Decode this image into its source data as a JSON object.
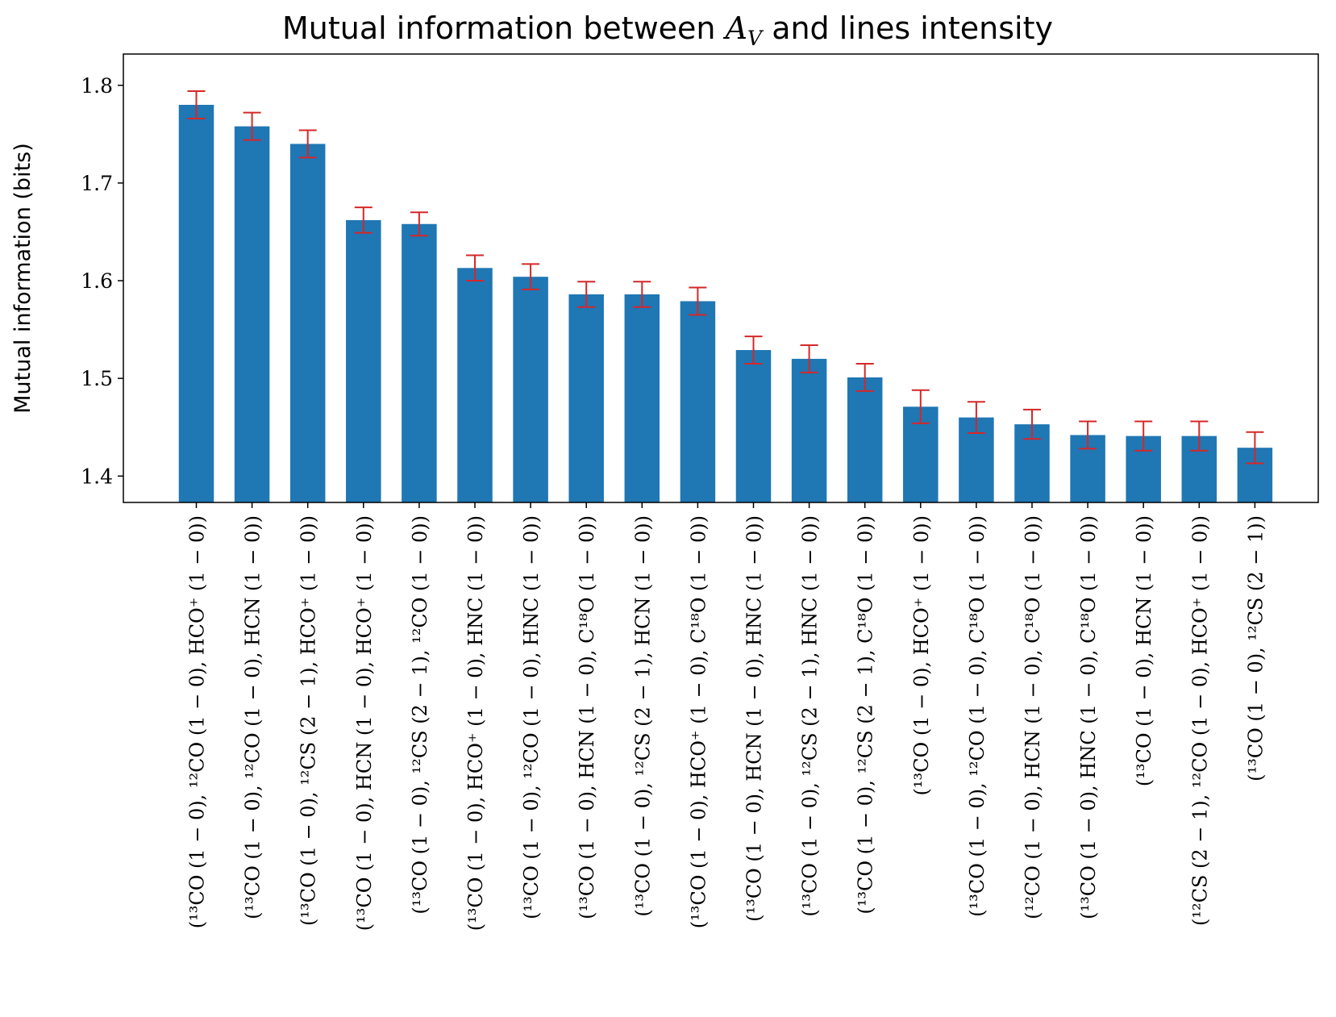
{
  "chart_data": {
    "type": "bar",
    "title": "Mutual information between A_V and lines intensity",
    "title_parts": {
      "before": "Mutual information between ",
      "math_main": "A",
      "math_sub": "V",
      "after": " and lines intensity"
    },
    "xlabel": "",
    "ylabel": "Mutual information (bits)",
    "ylim": [
      1.373,
      1.832
    ],
    "yticks": [
      "1.4",
      "1.5",
      "1.6",
      "1.7",
      "1.8"
    ],
    "grid": false,
    "bar_color": "#1f77b4",
    "error_color": "#d62728",
    "categories": [
      "(¹³CO (1 − 0), ¹²CO (1 − 0), HCO⁺ (1 − 0))",
      "(¹³CO (1 − 0), ¹²CO (1 − 0), HCN (1 − 0))",
      "(¹³CO (1 − 0), ¹²CS (2 − 1), HCO⁺ (1 − 0))",
      "(¹³CO (1 − 0), HCN (1 − 0), HCO⁺ (1 − 0))",
      "(¹³CO (1 − 0), ¹²CS (2 − 1), ¹²CO (1 − 0))",
      "(¹³CO (1 − 0), HCO⁺ (1 − 0), HNC (1 − 0))",
      "(¹³CO (1 − 0), ¹²CO (1 − 0), HNC (1 − 0))",
      "(¹³CO (1 − 0), HCN (1 − 0), C¹⁸O (1 − 0))",
      "(¹³CO (1 − 0), ¹²CS (2 − 1), HCN (1 − 0))",
      "(¹³CO (1 − 0), HCO⁺ (1 − 0), C¹⁸O (1 − 0))",
      "(¹³CO (1 − 0), HCN (1 − 0), HNC (1 − 0))",
      "(¹³CO (1 − 0), ¹²CS (2 − 1), HNC (1 − 0))",
      "(¹³CO (1 − 0), ¹²CS (2 − 1), C¹⁸O (1 − 0))",
      "(¹³CO (1 − 0), HCO⁺ (1 − 0))",
      "(¹³CO (1 − 0), ¹²CO (1 − 0), C¹⁸O (1 − 0))",
      "(¹²CO (1 − 0), HCN (1 − 0), C¹⁸O (1 − 0))",
      "(¹³CO (1 − 0), HNC (1 − 0), C¹⁸O (1 − 0))",
      "(¹³CO (1 − 0), HCN (1 − 0))",
      "(¹²CS (2 − 1), ¹²CO (1 − 0), HCO⁺ (1 − 0))",
      "(¹³CO (1 − 0), ¹²CS (2 − 1))"
    ],
    "values": [
      1.78,
      1.758,
      1.74,
      1.662,
      1.658,
      1.613,
      1.604,
      1.586,
      1.586,
      1.579,
      1.529,
      1.52,
      1.501,
      1.471,
      1.46,
      1.453,
      1.442,
      1.441,
      1.441,
      1.429
    ],
    "errors": [
      0.014,
      0.014,
      0.014,
      0.013,
      0.012,
      0.013,
      0.013,
      0.013,
      0.013,
      0.014,
      0.014,
      0.014,
      0.014,
      0.017,
      0.016,
      0.015,
      0.014,
      0.015,
      0.015,
      0.016
    ]
  }
}
